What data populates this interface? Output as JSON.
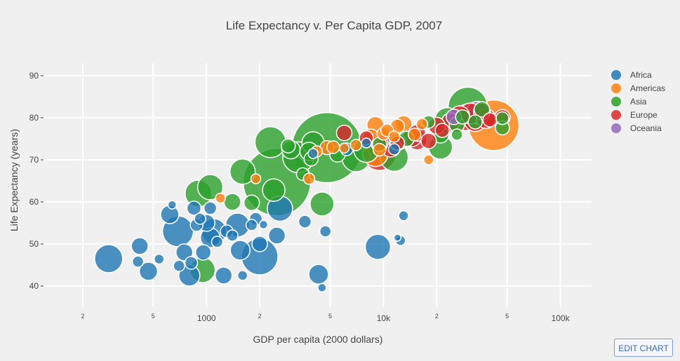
{
  "chart_data": {
    "type": "scatter",
    "title": "Life Expectancy v. Per Capita GDP, 2007",
    "xlabel": "GDP per capita (2000 dollars)",
    "ylabel": "Life Expectancy (years)",
    "xscale": "log",
    "xlim": [
      120,
      150000
    ],
    "ylim": [
      35,
      93
    ],
    "x_ticks": [
      {
        "value": 200,
        "label": "2"
      },
      {
        "value": 500,
        "label": "5"
      },
      {
        "value": 1000,
        "label": "1000"
      },
      {
        "value": 2000,
        "label": "2"
      },
      {
        "value": 5000,
        "label": "5"
      },
      {
        "value": 10000,
        "label": "10k"
      },
      {
        "value": 20000,
        "label": "2"
      },
      {
        "value": 50000,
        "label": "5"
      },
      {
        "value": 100000,
        "label": "100k"
      }
    ],
    "y_ticks": [
      40,
      50,
      60,
      70,
      80,
      90
    ],
    "grid": true,
    "legend_position": "top-right",
    "colors": {
      "Africa": "#1f77b4",
      "Americas": "#ff7f0e",
      "Asia": "#2ca02c",
      "Europe": "#d62728",
      "Oceania": "#9467bd"
    },
    "series": [
      {
        "name": "Africa",
        "points": [
          [
            280,
            46.5,
            20
          ],
          [
            420,
            49.5,
            12
          ],
          [
            410,
            45.8,
            8
          ],
          [
            470,
            43.5,
            13
          ],
          [
            540,
            46.4,
            7
          ],
          [
            640,
            59.3,
            6
          ],
          [
            620,
            57.0,
            13
          ],
          [
            690,
            53.0,
            22
          ],
          [
            700,
            44.8,
            8
          ],
          [
            750,
            48.0,
            12
          ],
          [
            800,
            42.5,
            15
          ],
          [
            820,
            45.5,
            9
          ],
          [
            850,
            58.5,
            10
          ],
          [
            880,
            54.5,
            9
          ],
          [
            920,
            56.0,
            8
          ],
          [
            960,
            48.0,
            11
          ],
          [
            1000,
            55.0,
            12
          ],
          [
            1050,
            51.5,
            14
          ],
          [
            1100,
            53.0,
            18
          ],
          [
            1050,
            58.5,
            9
          ],
          [
            1150,
            50.5,
            8
          ],
          [
            1250,
            42.5,
            12
          ],
          [
            1300,
            53.0,
            9
          ],
          [
            1400,
            52.0,
            8
          ],
          [
            1500,
            54.5,
            17
          ],
          [
            1550,
            48.5,
            14
          ],
          [
            1600,
            42.5,
            7
          ],
          [
            1800,
            54.5,
            8
          ],
          [
            1900,
            56.0,
            9
          ],
          [
            2000,
            47.0,
            26
          ],
          [
            2000,
            50.0,
            11
          ],
          [
            2100,
            54.6,
            6
          ],
          [
            2500,
            52.0,
            12
          ],
          [
            2600,
            58.4,
            18
          ],
          [
            3600,
            55.3,
            9
          ],
          [
            4300,
            42.8,
            14
          ],
          [
            4700,
            53.0,
            8
          ],
          [
            4500,
            39.6,
            6
          ],
          [
            6200,
            72.5,
            9
          ],
          [
            8000,
            74.0,
            7
          ],
          [
            9300,
            49.3,
            18
          ],
          [
            12000,
            51.5,
            5
          ],
          [
            12500,
            50.8,
            7
          ],
          [
            13000,
            56.7,
            7
          ],
          [
            4000,
            71.5,
            7
          ],
          [
            11500,
            72.5,
            8
          ]
        ]
      },
      {
        "name": "Americas",
        "points": [
          [
            1200,
            60.9,
            7
          ],
          [
            1900,
            65.5,
            7
          ],
          [
            3800,
            65.5,
            8
          ],
          [
            4200,
            72.0,
            8
          ],
          [
            4800,
            72.9,
            10
          ],
          [
            5200,
            73.0,
            9
          ],
          [
            6000,
            72.8,
            7
          ],
          [
            7000,
            73.5,
            8
          ],
          [
            8500,
            75.5,
            11
          ],
          [
            9000,
            78.3,
            12
          ],
          [
            9500,
            72.4,
            9
          ],
          [
            9000,
            71.4,
            18
          ],
          [
            10000,
            76.2,
            9
          ],
          [
            10500,
            77.0,
            9
          ],
          [
            11500,
            75.5,
            8
          ],
          [
            12000,
            78.0,
            10
          ],
          [
            13000,
            78.5,
            12
          ],
          [
            15000,
            76.0,
            9
          ],
          [
            16500,
            78.5,
            8
          ],
          [
            18000,
            70.0,
            7
          ],
          [
            42000,
            78.2,
            36
          ]
        ]
      },
      {
        "name": "Asia",
        "points": [
          [
            950,
            43.8,
            18
          ],
          [
            900,
            62.0,
            19
          ],
          [
            1050,
            63.5,
            18
          ],
          [
            1400,
            60.0,
            12
          ],
          [
            1800,
            59.8,
            11
          ],
          [
            1600,
            67.2,
            18
          ],
          [
            2500,
            64.7,
            48
          ],
          [
            2300,
            74.2,
            22
          ],
          [
            2400,
            62.8,
            16
          ],
          [
            3000,
            72.4,
            13
          ],
          [
            2900,
            73.3,
            10
          ],
          [
            3300,
            70.6,
            22
          ],
          [
            3500,
            66.6,
            9
          ],
          [
            3800,
            72.0,
            13
          ],
          [
            4000,
            74.0,
            16
          ],
          [
            3900,
            70.2,
            10
          ],
          [
            4500,
            59.5,
            17
          ],
          [
            4800,
            72.9,
            50
          ],
          [
            5500,
            71.3,
            11
          ],
          [
            7000,
            70.5,
            20
          ],
          [
            8000,
            72.4,
            18
          ],
          [
            9500,
            73.7,
            10
          ],
          [
            11500,
            70.6,
            20
          ],
          [
            12000,
            74.2,
            12
          ],
          [
            13500,
            75.0,
            11
          ],
          [
            18000,
            79.0,
            9
          ],
          [
            21000,
            73.0,
            17
          ],
          [
            21000,
            76.0,
            12
          ],
          [
            23000,
            79.4,
            18
          ],
          [
            26000,
            78.4,
            11
          ],
          [
            28000,
            80.2,
            10
          ],
          [
            30000,
            82.6,
            28
          ],
          [
            33000,
            79.0,
            10
          ],
          [
            36000,
            82.0,
            11
          ],
          [
            47000,
            77.6,
            10
          ],
          [
            47000,
            79.9,
            9
          ],
          [
            26000,
            76.0,
            8
          ]
        ]
      },
      {
        "name": "Europe",
        "points": [
          [
            6000,
            76.4,
            11
          ],
          [
            8000,
            75.2,
            10
          ],
          [
            9500,
            73.9,
            12
          ],
          [
            9500,
            71.5,
            24
          ],
          [
            11000,
            73.0,
            14
          ],
          [
            12000,
            74.0,
            10
          ],
          [
            14500,
            75.3,
            13
          ],
          [
            15500,
            74.7,
            14
          ],
          [
            15500,
            76.4,
            12
          ],
          [
            18000,
            74.5,
            11
          ],
          [
            20000,
            78.1,
            12
          ],
          [
            21500,
            77.0,
            10
          ],
          [
            24000,
            79.0,
            13
          ],
          [
            27000,
            80.5,
            14
          ],
          [
            29000,
            79.6,
            16
          ],
          [
            30000,
            80.3,
            18
          ],
          [
            31000,
            81.0,
            15
          ],
          [
            32000,
            80.2,
            20
          ],
          [
            33000,
            79.4,
            16
          ],
          [
            34000,
            80.9,
            18
          ],
          [
            36000,
            81.5,
            12
          ],
          [
            38000,
            79.8,
            14
          ],
          [
            40000,
            79.5,
            10
          ],
          [
            47000,
            80.1,
            11
          ]
        ]
      },
      {
        "name": "Oceania",
        "points": [
          [
            25000,
            80.2,
            11
          ],
          [
            34000,
            81.2,
            16
          ]
        ]
      }
    ]
  },
  "ui": {
    "edit_button_label": "EDIT CHART"
  }
}
